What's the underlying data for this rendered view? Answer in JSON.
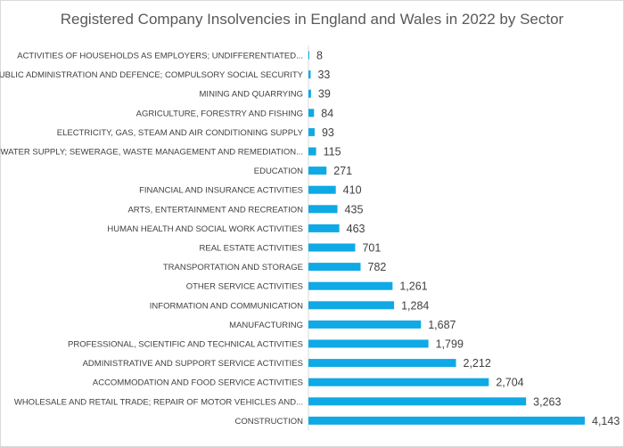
{
  "chart_data": {
    "type": "bar",
    "orientation": "horizontal",
    "title": "Registered Company Insolvencies in England and Wales in 2022 by Sector",
    "xlabel": "",
    "ylabel": "",
    "grid": false,
    "legend": "none",
    "bar_color": "#0fa9e6",
    "axis_color": "#d9d9d9",
    "categories": [
      "ACTIVITIES OF HOUSEHOLDS AS EMPLOYERS; UNDIFFERENTIATED...",
      "PUBLIC ADMINISTRATION AND DEFENCE; COMPULSORY SOCIAL SECURITY",
      "MINING AND QUARRYING",
      "AGRICULTURE, FORESTRY AND FISHING",
      "ELECTRICITY, GAS, STEAM AND AIR CONDITIONING SUPPLY",
      "WATER SUPPLY; SEWERAGE, WASTE MANAGEMENT AND REMEDIATION...",
      "EDUCATION",
      "FINANCIAL AND INSURANCE ACTIVITIES",
      "ARTS, ENTERTAINMENT AND RECREATION",
      "HUMAN HEALTH AND SOCIAL WORK ACTIVITIES",
      "REAL ESTATE ACTIVITIES",
      "TRANSPORTATION AND STORAGE",
      "OTHER SERVICE ACTIVITIES",
      "INFORMATION AND COMMUNICATION",
      "MANUFACTURING",
      "PROFESSIONAL, SCIENTIFIC AND TECHNICAL ACTIVITIES",
      "ADMINISTRATIVE AND SUPPORT SERVICE ACTIVITIES",
      "ACCOMMODATION AND FOOD SERVICE ACTIVITIES",
      "WHOLESALE AND RETAIL TRADE; REPAIR OF MOTOR VEHICLES AND...",
      "CONSTRUCTION"
    ],
    "values": [
      8,
      33,
      39,
      84,
      93,
      115,
      271,
      410,
      435,
      463,
      701,
      782,
      1261,
      1284,
      1687,
      1799,
      2212,
      2704,
      3263,
      4143
    ],
    "value_labels": [
      "8",
      "33",
      "39",
      "84",
      "93",
      "115",
      "271",
      "410",
      "435",
      "463",
      "701",
      "782",
      "1,261",
      "1,284",
      "1,687",
      "1,799",
      "2,212",
      "2,704",
      "3,263",
      "4,143"
    ]
  }
}
